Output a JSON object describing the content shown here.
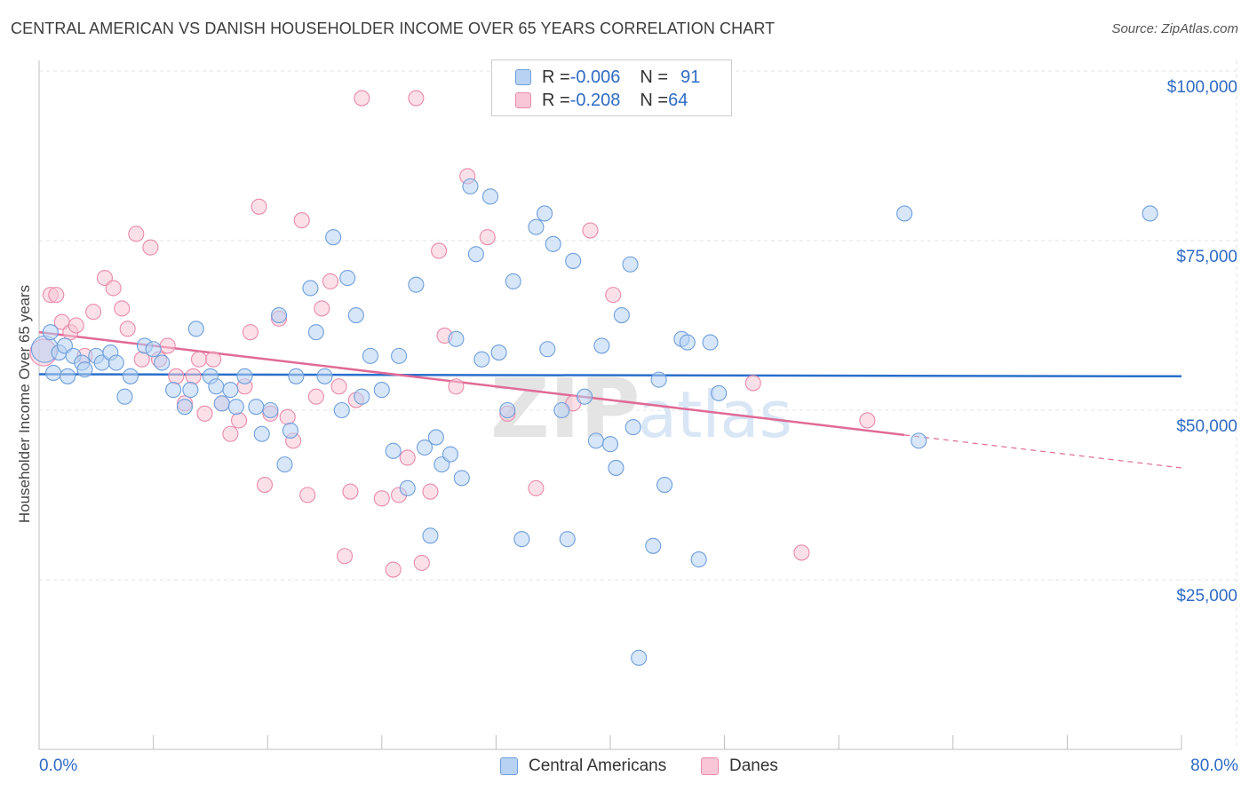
{
  "title": "CENTRAL AMERICAN VS DANISH HOUSEHOLDER INCOME OVER 65 YEARS CORRELATION CHART",
  "source": "Source: ZipAtlas.com",
  "watermark": {
    "zip": "ZIP",
    "atlas": "atlas"
  },
  "legend": {
    "rows": [
      {
        "r_label": "R = ",
        "r_value": "-0.006",
        "n_label": "N = ",
        "n_value": "91"
      },
      {
        "r_label": "R = ",
        "r_value": "-0.208",
        "n_label": "N = ",
        "n_value": "64"
      }
    ]
  },
  "bottom_legend": {
    "items": [
      {
        "label": "Central Americans"
      },
      {
        "label": "Danes"
      }
    ]
  },
  "colors": {
    "blue_fill": "#b7d2f2",
    "blue_stroke": "#6f9fdc",
    "blue_line": "#2a6fcb",
    "pink_fill": "#f8c6d6",
    "pink_stroke": "#e98aab",
    "pink_line": "#e06a96",
    "axis_text": "#2f6bc4",
    "grid": "#e3e3e3"
  },
  "chart_data": {
    "type": "scatter",
    "title": "CENTRAL AMERICAN VS DANISH HOUSEHOLDER INCOME OVER 65 YEARS CORRELATION CHART",
    "xlabel": "",
    "ylabel": "Householder Income Over 65 years",
    "xlim": [
      0,
      80
    ],
    "ylim": [
      3000,
      105000
    ],
    "x_tick_labels": [
      "0.0%",
      "80.0%"
    ],
    "y_ticks": [
      25000,
      50000,
      75000,
      100000
    ],
    "y_tick_labels": [
      "$25,000",
      "$50,000",
      "$75,000",
      "$100,000"
    ],
    "grid": true,
    "series": [
      {
        "name": "Central Americans",
        "color": "#b7d2f2",
        "trend": {
          "x": [
            0,
            80
          ],
          "y": [
            55300,
            55000
          ],
          "dashed_from": null
        },
        "points": [
          [
            0.4,
            59000
          ],
          [
            0.8,
            61500
          ],
          [
            1.0,
            55500
          ],
          [
            1.4,
            58500
          ],
          [
            1.8,
            59500
          ],
          [
            2.0,
            55000
          ],
          [
            2.4,
            58000
          ],
          [
            3.0,
            57000
          ],
          [
            3.2,
            56000
          ],
          [
            4.0,
            58000
          ],
          [
            4.4,
            57000
          ],
          [
            5.0,
            58500
          ],
          [
            5.4,
            57000
          ],
          [
            6.0,
            52000
          ],
          [
            6.4,
            55000
          ],
          [
            7.4,
            59500
          ],
          [
            8.0,
            59000
          ],
          [
            8.6,
            57000
          ],
          [
            9.4,
            53000
          ],
          [
            10.2,
            50500
          ],
          [
            10.6,
            53000
          ],
          [
            11.0,
            62000
          ],
          [
            12.0,
            55000
          ],
          [
            12.4,
            53500
          ],
          [
            12.8,
            51000
          ],
          [
            13.4,
            53000
          ],
          [
            13.8,
            50500
          ],
          [
            14.4,
            55000
          ],
          [
            15.2,
            50500
          ],
          [
            15.6,
            46500
          ],
          [
            16.2,
            50000
          ],
          [
            16.8,
            64000
          ],
          [
            17.2,
            42000
          ],
          [
            17.6,
            47000
          ],
          [
            18.0,
            55000
          ],
          [
            19.0,
            68000
          ],
          [
            19.4,
            61500
          ],
          [
            20.0,
            55000
          ],
          [
            20.6,
            75500
          ],
          [
            21.2,
            50000
          ],
          [
            21.6,
            69500
          ],
          [
            22.2,
            64000
          ],
          [
            22.6,
            52000
          ],
          [
            23.2,
            58000
          ],
          [
            24.0,
            53000
          ],
          [
            24.8,
            44000
          ],
          [
            25.2,
            58000
          ],
          [
            25.8,
            38500
          ],
          [
            26.4,
            68500
          ],
          [
            27.0,
            44500
          ],
          [
            27.4,
            31500
          ],
          [
            27.8,
            46000
          ],
          [
            28.2,
            42000
          ],
          [
            28.8,
            43500
          ],
          [
            29.2,
            60500
          ],
          [
            29.6,
            40000
          ],
          [
            30.2,
            83000
          ],
          [
            30.6,
            73000
          ],
          [
            31.0,
            57500
          ],
          [
            31.6,
            81500
          ],
          [
            32.2,
            58500
          ],
          [
            32.8,
            50000
          ],
          [
            33.2,
            69000
          ],
          [
            33.8,
            31000
          ],
          [
            34.8,
            77000
          ],
          [
            35.4,
            79000
          ],
          [
            35.6,
            59000
          ],
          [
            36.0,
            74500
          ],
          [
            36.6,
            50000
          ],
          [
            37.0,
            31000
          ],
          [
            37.4,
            72000
          ],
          [
            38.2,
            52000
          ],
          [
            39.0,
            45500
          ],
          [
            39.4,
            59500
          ],
          [
            40.0,
            45000
          ],
          [
            40.4,
            41500
          ],
          [
            40.8,
            64000
          ],
          [
            41.4,
            71500
          ],
          [
            41.6,
            47500
          ],
          [
            42.0,
            13500
          ],
          [
            43.0,
            30000
          ],
          [
            43.4,
            54500
          ],
          [
            43.8,
            39000
          ],
          [
            45.0,
            60500
          ],
          [
            45.4,
            60000
          ],
          [
            46.2,
            28000
          ],
          [
            47.0,
            60000
          ],
          [
            47.6,
            52500
          ],
          [
            60.6,
            79000
          ],
          [
            61.6,
            45500
          ],
          [
            77.8,
            79000
          ]
        ]
      },
      {
        "name": "Danes",
        "color": "#f8c6d6",
        "trend": {
          "x": [
            0,
            80
          ],
          "y": [
            61500,
            41500
          ],
          "dashed_from": 60.6
        },
        "points": [
          [
            0.3,
            58500
          ],
          [
            0.8,
            67000
          ],
          [
            1.2,
            67000
          ],
          [
            1.6,
            63000
          ],
          [
            2.2,
            61500
          ],
          [
            2.6,
            62500
          ],
          [
            3.2,
            58000
          ],
          [
            3.8,
            64500
          ],
          [
            4.6,
            69500
          ],
          [
            5.2,
            68000
          ],
          [
            5.8,
            65000
          ],
          [
            6.2,
            62000
          ],
          [
            6.8,
            76000
          ],
          [
            7.2,
            57500
          ],
          [
            7.8,
            74000
          ],
          [
            8.4,
            57500
          ],
          [
            9.0,
            59500
          ],
          [
            9.6,
            55000
          ],
          [
            10.2,
            51000
          ],
          [
            10.8,
            55000
          ],
          [
            11.2,
            57500
          ],
          [
            11.6,
            49500
          ],
          [
            12.2,
            57500
          ],
          [
            12.8,
            51000
          ],
          [
            13.4,
            46500
          ],
          [
            14.0,
            48500
          ],
          [
            14.4,
            53500
          ],
          [
            14.8,
            61500
          ],
          [
            15.4,
            80000
          ],
          [
            15.8,
            39000
          ],
          [
            16.2,
            49500
          ],
          [
            16.8,
            63500
          ],
          [
            17.4,
            49000
          ],
          [
            17.8,
            45500
          ],
          [
            18.4,
            78000
          ],
          [
            18.8,
            37500
          ],
          [
            19.4,
            52000
          ],
          [
            19.8,
            65000
          ],
          [
            20.4,
            69000
          ],
          [
            21.0,
            53500
          ],
          [
            21.4,
            28500
          ],
          [
            21.8,
            38000
          ],
          [
            22.2,
            51500
          ],
          [
            22.6,
            96000
          ],
          [
            24.0,
            37000
          ],
          [
            24.8,
            26500
          ],
          [
            25.2,
            37500
          ],
          [
            25.8,
            43000
          ],
          [
            26.4,
            96000
          ],
          [
            26.8,
            27500
          ],
          [
            27.4,
            38000
          ],
          [
            28.0,
            73500
          ],
          [
            28.4,
            61000
          ],
          [
            29.2,
            53500
          ],
          [
            30.0,
            84500
          ],
          [
            31.4,
            75500
          ],
          [
            32.8,
            49500
          ],
          [
            34.8,
            38500
          ],
          [
            37.4,
            51000
          ],
          [
            38.6,
            76500
          ],
          [
            40.2,
            67000
          ],
          [
            50.0,
            54000
          ],
          [
            53.4,
            29000
          ],
          [
            58.0,
            48500
          ]
        ]
      }
    ]
  }
}
